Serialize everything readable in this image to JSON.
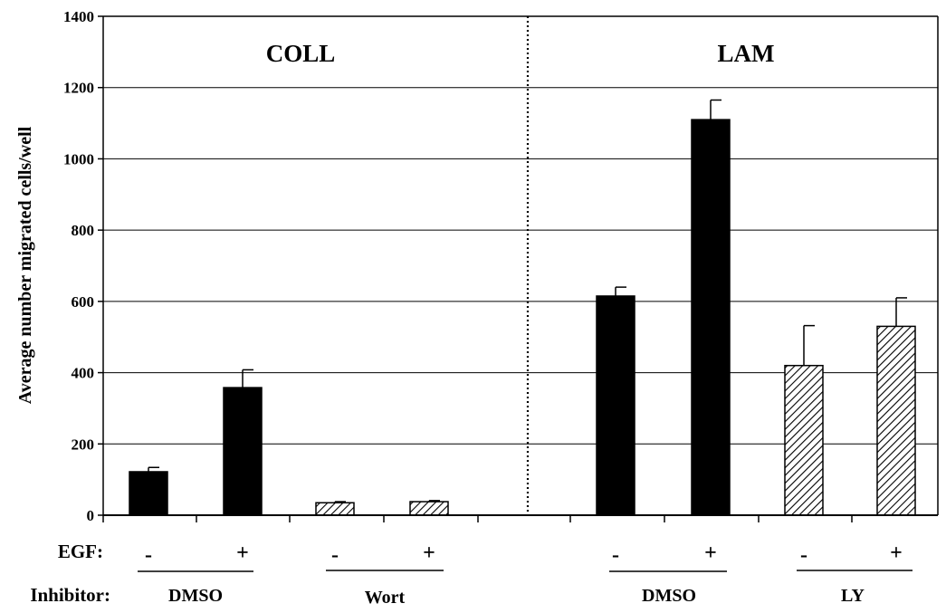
{
  "chart_data": {
    "type": "bar",
    "ylabel": "Average number migrated cells/well",
    "ylim": [
      0,
      1400
    ],
    "yticks": [
      0,
      200,
      400,
      600,
      800,
      1000,
      1200,
      1400
    ],
    "grid": true,
    "panels": [
      {
        "label": "COLL"
      },
      {
        "label": "LAM"
      }
    ],
    "row_labels": {
      "egf": "EGF:",
      "inhibitor": "Inhibitor:"
    },
    "groups": [
      {
        "label": "DMSO",
        "panel": 0
      },
      {
        "label": "Wort",
        "panel": 0
      },
      {
        "label": "DMSO",
        "panel": 1
      },
      {
        "label": "LY",
        "panel": 1
      }
    ],
    "bars": [
      {
        "group": 0,
        "egf": "-",
        "value": 122,
        "error": 12,
        "fill": "solid"
      },
      {
        "group": 0,
        "egf": "+",
        "value": 358,
        "error": 50,
        "fill": "solid"
      },
      {
        "group": 1,
        "egf": "-",
        "value": 35,
        "error": 3,
        "fill": "hatched"
      },
      {
        "group": 1,
        "egf": "+",
        "value": 38,
        "error": 3,
        "fill": "hatched"
      },
      {
        "group": 2,
        "egf": "-",
        "value": 615,
        "error": 25,
        "fill": "solid"
      },
      {
        "group": 2,
        "egf": "+",
        "value": 1110,
        "error": 55,
        "fill": "solid"
      },
      {
        "group": 3,
        "egf": "-",
        "value": 420,
        "error": 112,
        "fill": "hatched"
      },
      {
        "group": 3,
        "egf": "+",
        "value": 530,
        "error": 80,
        "fill": "hatched"
      }
    ],
    "colors": {
      "solid": "#000000",
      "hatched_line": "#000000",
      "background": "#ffffff"
    }
  }
}
